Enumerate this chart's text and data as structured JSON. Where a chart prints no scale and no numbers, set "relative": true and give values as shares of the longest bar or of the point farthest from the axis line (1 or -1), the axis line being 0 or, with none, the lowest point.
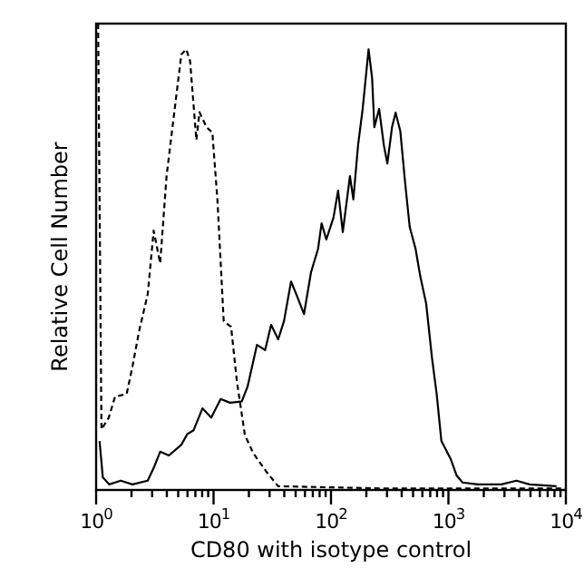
{
  "chart_data": {
    "type": "line",
    "xlabel": "CD80 with isotype control",
    "ylabel": "Relative Cell Number",
    "relative": true,
    "log": "x",
    "xlim": [
      1,
      10000
    ],
    "xticks": [
      {
        "value": 1,
        "label": "10$^{0}$"
      },
      {
        "value": 2,
        "label": null
      },
      {
        "value": 3,
        "label": null
      },
      {
        "value": 4,
        "label": null
      },
      {
        "value": 5,
        "label": null
      },
      {
        "value": 6,
        "label": null
      },
      {
        "value": 7,
        "label": null
      },
      {
        "value": 8,
        "label": null
      },
      {
        "value": 9,
        "label": null
      },
      {
        "value": 10,
        "label": "10$^{1}$"
      },
      {
        "value": 20,
        "label": null
      },
      {
        "value": 30,
        "label": null
      },
      {
        "value": 40,
        "label": null
      },
      {
        "value": 50,
        "label": null
      },
      {
        "value": 60,
        "label": null
      },
      {
        "value": 70,
        "label": null
      },
      {
        "value": 80,
        "label": null
      },
      {
        "value": 90,
        "label": null
      },
      {
        "value": 100,
        "label": "10$^{2}$"
      },
      {
        "value": 200,
        "label": null
      },
      {
        "value": 300,
        "label": null
      },
      {
        "value": 400,
        "label": null
      },
      {
        "value": 500,
        "label": null
      },
      {
        "value": 600,
        "label": null
      },
      {
        "value": 700,
        "label": null
      },
      {
        "value": 800,
        "label": null
      },
      {
        "value": 900,
        "label": null
      },
      {
        "value": 1000,
        "label": "10$^{3}$"
      },
      {
        "value": 2000,
        "label": null
      },
      {
        "value": 3000,
        "label": null
      },
      {
        "value": 4000,
        "label": null
      },
      {
        "value": 5000,
        "label": null
      },
      {
        "value": 6000,
        "label": null
      },
      {
        "value": 7000,
        "label": null
      },
      {
        "value": 8000,
        "label": null
      },
      {
        "value": 9000,
        "label": null
      },
      {
        "value": 10000,
        "label": "10$^{4}$"
      }
    ],
    "marker": "none",
    "series": [
      {
        "color": "#000000",
        "line_style": "dashed",
        "x": [
          1.04,
          1.11,
          1.28,
          1.45,
          1.82,
          2.04,
          2.32,
          2.75,
          3.09,
          3.51,
          3.98,
          4.47,
          5.32,
          5.85,
          6.31,
          7.14,
          7.59,
          8.71,
          9.77,
          10.8,
          12.2,
          14.1,
          15.8,
          18.5,
          21.9,
          28.2,
          35.5,
          316,
          10000
        ],
        "values": [
          1.0,
          0.13,
          0.155,
          0.2,
          0.206,
          0.265,
          0.34,
          0.42,
          0.556,
          0.486,
          0.673,
          0.778,
          0.934,
          0.945,
          0.92,
          0.75,
          0.81,
          0.778,
          0.766,
          0.62,
          0.362,
          0.35,
          0.233,
          0.117,
          0.078,
          0.039,
          0.008,
          0.003,
          0.003
        ]
      },
      {
        "color": "#000000",
        "line_style": "solid",
        "x": [
          1.07,
          1.14,
          1.29,
          1.62,
          2.04,
          2.75,
          3.09,
          3.51,
          4.17,
          5.32,
          5.98,
          6.76,
          8.05,
          9.55,
          11.5,
          13.8,
          17.4,
          19.5,
          23.4,
          27.5,
          30.9,
          35.5,
          39.8,
          45.7,
          51.3,
          58.9,
          67.6,
          77.6,
          83.2,
          91.2,
          105,
          115,
          126,
          145,
          155,
          170,
          186,
          209,
          224,
          234,
          257,
          282,
          302,
          331,
          355,
          389,
          427,
          468,
          525,
          575,
          646,
          724,
          794,
          871,
          1047,
          1175,
          1318,
          1778,
          2818,
          3802,
          4898,
          8318
        ],
        "values": [
          0.105,
          0.027,
          0.012,
          0.02,
          0.012,
          0.02,
          0.047,
          0.082,
          0.074,
          0.097,
          0.12,
          0.128,
          0.175,
          0.155,
          0.195,
          0.187,
          0.19,
          0.222,
          0.311,
          0.3,
          0.354,
          0.323,
          0.362,
          0.447,
          0.416,
          0.377,
          0.467,
          0.517,
          0.572,
          0.537,
          0.584,
          0.642,
          0.553,
          0.673,
          0.623,
          0.739,
          0.817,
          0.945,
          0.883,
          0.778,
          0.817,
          0.739,
          0.7,
          0.778,
          0.809,
          0.77,
          0.661,
          0.564,
          0.517,
          0.459,
          0.4,
          0.284,
          0.206,
          0.105,
          0.066,
          0.031,
          0.016,
          0.012,
          0.012,
          0.02,
          0.012,
          0.008
        ]
      }
    ]
  }
}
